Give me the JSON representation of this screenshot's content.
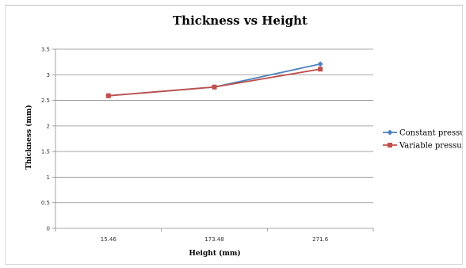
{
  "chart_data": {
    "type": "line",
    "title": "Thickness vs Height",
    "xlabel": "Height (mm)",
    "ylabel": "Thickness (mm)",
    "categories": [
      "15.46",
      "173.48",
      "271.6"
    ],
    "ylim": [
      0,
      3.5
    ],
    "yticks": [
      "0",
      "0.5",
      "1",
      "1.5",
      "2",
      "2.5",
      "3",
      "3.5"
    ],
    "grid": true,
    "legend_position": "right",
    "series": [
      {
        "name": "Constant pressure",
        "values": [
          2.59,
          2.76,
          3.21
        ],
        "color": "#4f81bd",
        "marker": "diamond"
      },
      {
        "name": "Variable pressure",
        "values": [
          2.59,
          2.76,
          3.11
        ],
        "color": "#c0504d",
        "marker": "square"
      }
    ]
  }
}
